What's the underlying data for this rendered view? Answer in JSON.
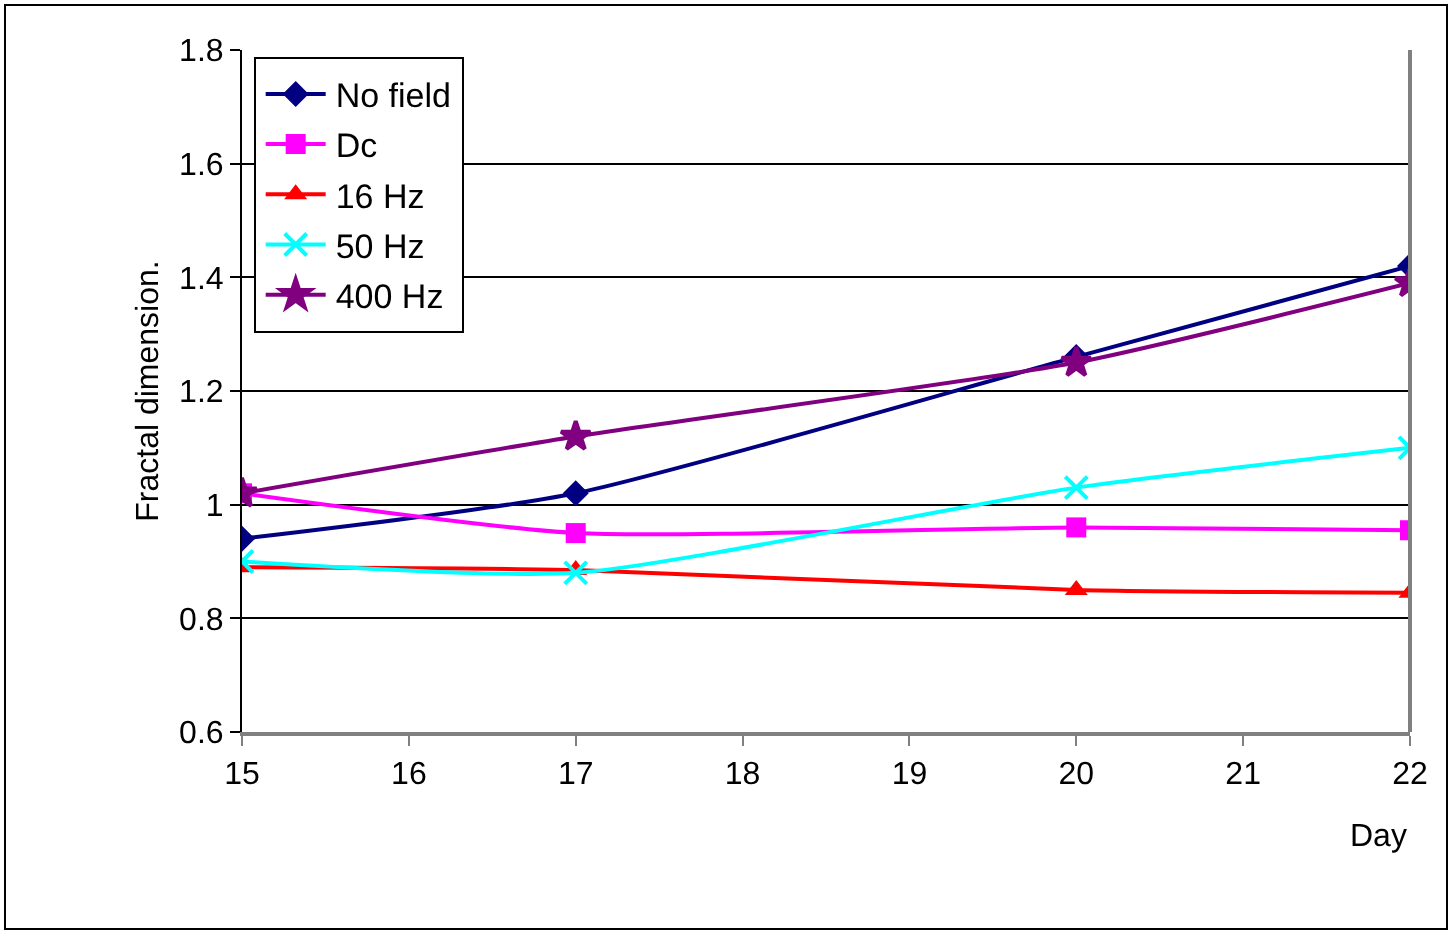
{
  "chart_data": {
    "type": "line",
    "ylabel": "Fractal dimension.",
    "xlabel": "Day",
    "x": [
      15,
      17,
      20,
      22
    ],
    "xlim": [
      15,
      22
    ],
    "xticks": [
      15,
      16,
      17,
      18,
      19,
      20,
      21,
      22
    ],
    "ylim": [
      0.6,
      1.8
    ],
    "yticks": [
      0.6,
      0.8,
      1,
      1.2,
      1.4,
      1.6,
      1.8
    ],
    "grid": "y",
    "legend": "top left",
    "series": [
      {
        "name": "No field",
        "color": "#000080",
        "marker": "diamond",
        "values": [
          0.94,
          1.02,
          1.26,
          1.42
        ]
      },
      {
        "name": "Dc",
        "color": "#ff00ff",
        "marker": "square",
        "values": [
          1.02,
          0.95,
          0.96,
          0.955
        ]
      },
      {
        "name": "16 Hz",
        "color": "#ff0000",
        "marker": "triangle",
        "values": [
          0.89,
          0.885,
          0.85,
          0.845
        ]
      },
      {
        "name": "50 Hz",
        "color": "#00ffff",
        "marker": "cross",
        "values": [
          0.9,
          0.88,
          1.03,
          1.1
        ]
      },
      {
        "name": "400 Hz",
        "color": "#800080",
        "marker": "star",
        "values": [
          1.02,
          1.12,
          1.25,
          1.39
        ]
      }
    ]
  }
}
